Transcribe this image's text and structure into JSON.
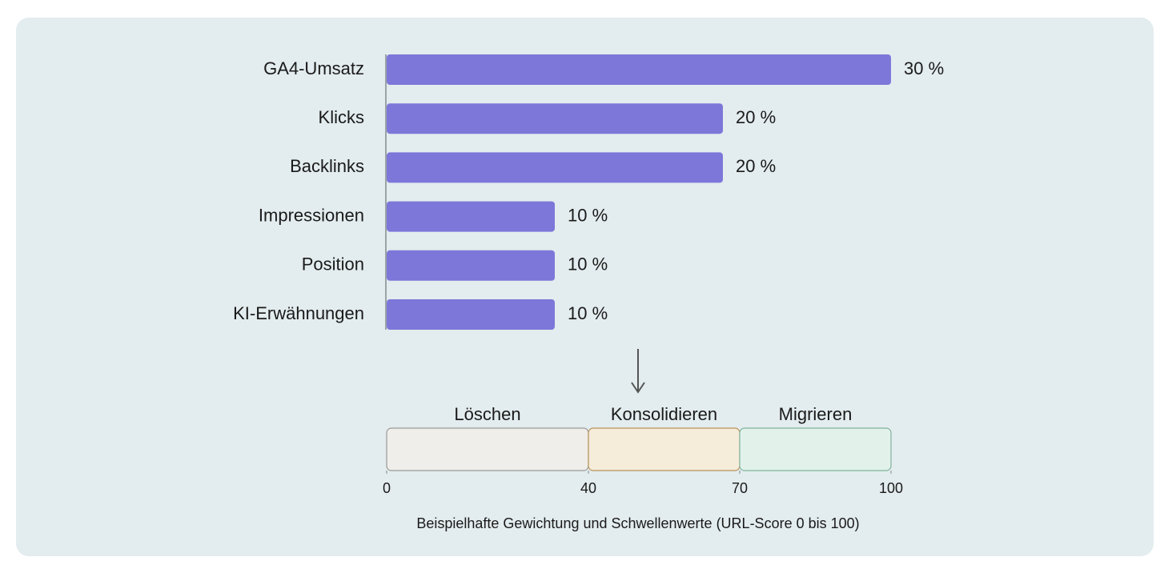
{
  "chart_data": [
    {
      "type": "bar",
      "orientation": "horizontal",
      "categories": [
        "GA4-Umsatz",
        "Klicks",
        "Backlinks",
        "Impressionen",
        "Position",
        "KI-Erwähnungen"
      ],
      "values": [
        30,
        20,
        20,
        10,
        10,
        10
      ],
      "value_labels": [
        "30 %",
        "20 %",
        "20 %",
        "10 %",
        "10 %",
        "10 %"
      ],
      "color": "#7c77d9",
      "xlim": [
        0,
        30
      ]
    },
    {
      "type": "range",
      "segments": [
        {
          "name": "Löschen",
          "start": 0,
          "end": 40,
          "color": "#efeeea",
          "border": "#9a9a96"
        },
        {
          "name": "Konsolidieren",
          "start": 40,
          "end": 70,
          "color": "#f6ecda",
          "border": "#b7935a"
        },
        {
          "name": "Migrieren",
          "start": 70,
          "end": 100,
          "color": "#e2f2eb",
          "border": "#80b49c"
        }
      ],
      "xlim": [
        0,
        100
      ],
      "xticks": [
        0,
        40,
        70,
        100
      ],
      "xlabel": "Beispielhafte Gewichtung und Schwellenwerte (URL-Score 0 bis 100)"
    }
  ]
}
